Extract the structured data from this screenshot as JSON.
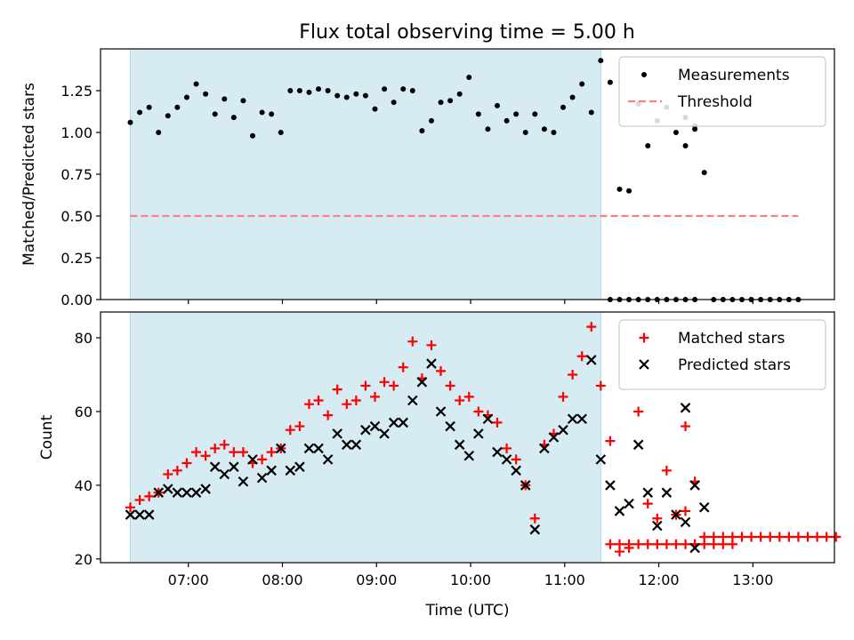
{
  "figure": {
    "title": "Flux total observing time = 5.00 h"
  },
  "chart_data": [
    {
      "type": "scatter",
      "ylabel": "Matched/Predicted stars",
      "ylim": [
        0,
        1.5
      ],
      "yticks": [
        0.0,
        0.25,
        0.5,
        0.75,
        1.0,
        1.25
      ],
      "ytick_labels": [
        "0.00",
        "0.25",
        "0.50",
        "0.75",
        "1.00",
        "1.25"
      ],
      "xlim": [
        "06:04",
        "13:52"
      ],
      "observing_window": [
        "06:23",
        "11:23"
      ],
      "legend_position": "upper right",
      "threshold": {
        "name": "Threshold",
        "value": 0.5,
        "x_range": [
          "06:23",
          "13:29"
        ],
        "color": "#ff7f7f",
        "style": "dashed"
      },
      "series": [
        {
          "name": "Measurements",
          "color": "#000000",
          "marker": "dot",
          "points": [
            [
              "06:23",
              1.06
            ],
            [
              "06:29",
              1.12
            ],
            [
              "06:35",
              1.15
            ],
            [
              "06:41",
              1.0
            ],
            [
              "06:47",
              1.1
            ],
            [
              "06:53",
              1.15
            ],
            [
              "06:59",
              1.21
            ],
            [
              "07:05",
              1.29
            ],
            [
              "07:11",
              1.23
            ],
            [
              "07:17",
              1.11
            ],
            [
              "07:23",
              1.2
            ],
            [
              "07:29",
              1.09
            ],
            [
              "07:35",
              1.19
            ],
            [
              "07:41",
              0.98
            ],
            [
              "07:47",
              1.12
            ],
            [
              "07:53",
              1.11
            ],
            [
              "07:59",
              1.0
            ],
            [
              "08:05",
              1.25
            ],
            [
              "08:11",
              1.25
            ],
            [
              "08:17",
              1.24
            ],
            [
              "08:23",
              1.26
            ],
            [
              "08:29",
              1.25
            ],
            [
              "08:35",
              1.22
            ],
            [
              "08:41",
              1.21
            ],
            [
              "08:47",
              1.23
            ],
            [
              "08:53",
              1.22
            ],
            [
              "08:59",
              1.14
            ],
            [
              "09:05",
              1.26
            ],
            [
              "09:11",
              1.18
            ],
            [
              "09:17",
              1.26
            ],
            [
              "09:23",
              1.25
            ],
            [
              "09:29",
              1.01
            ],
            [
              "09:35",
              1.07
            ],
            [
              "09:41",
              1.18
            ],
            [
              "09:47",
              1.19
            ],
            [
              "09:53",
              1.23
            ],
            [
              "09:59",
              1.33
            ],
            [
              "10:05",
              1.11
            ],
            [
              "10:11",
              1.02
            ],
            [
              "10:17",
              1.16
            ],
            [
              "10:23",
              1.07
            ],
            [
              "10:29",
              1.11
            ],
            [
              "10:35",
              1.0
            ],
            [
              "10:41",
              1.11
            ],
            [
              "10:47",
              1.02
            ],
            [
              "10:53",
              1.0
            ],
            [
              "10:59",
              1.15
            ],
            [
              "11:05",
              1.21
            ],
            [
              "11:11",
              1.29
            ],
            [
              "11:17",
              1.12
            ],
            [
              "11:23",
              1.43
            ],
            [
              "11:29",
              1.3
            ],
            [
              "11:35",
              0.66
            ],
            [
              "11:41",
              0.65
            ],
            [
              "11:47",
              1.17
            ],
            [
              "11:53",
              0.92
            ],
            [
              "11:59",
              1.07
            ],
            [
              "12:05",
              1.15
            ],
            [
              "12:11",
              1.0
            ],
            [
              "12:17",
              1.09
            ],
            [
              "12:23",
              1.04
            ],
            [
              "11:29",
              0.0
            ],
            [
              "11:35",
              0.0
            ],
            [
              "11:41",
              0.0
            ],
            [
              "11:47",
              0.0
            ],
            [
              "11:53",
              0.0
            ],
            [
              "11:59",
              0.0
            ],
            [
              "12:05",
              0.0
            ],
            [
              "12:11",
              0.0
            ],
            [
              "12:17",
              0.0
            ],
            [
              "12:23",
              0.0
            ],
            [
              "12:17",
              0.92
            ],
            [
              "12:23",
              1.02
            ],
            [
              "12:29",
              0.76
            ],
            [
              "12:35",
              0.0
            ],
            [
              "12:41",
              0.0
            ],
            [
              "12:47",
              0.0
            ],
            [
              "12:53",
              0.0
            ],
            [
              "12:59",
              0.0
            ],
            [
              "13:05",
              0.0
            ],
            [
              "13:11",
              0.0
            ],
            [
              "13:17",
              0.0
            ],
            [
              "13:23",
              0.0
            ],
            [
              "13:29",
              0.0
            ]
          ]
        }
      ]
    },
    {
      "type": "scatter",
      "ylabel": "Count",
      "xlabel": "Time (UTC)",
      "ylim": [
        19,
        87
      ],
      "yticks": [
        20,
        40,
        60,
        80
      ],
      "ytick_labels": [
        "20",
        "40",
        "60",
        "80"
      ],
      "xlim": [
        "06:04",
        "13:52"
      ],
      "xticks": [
        "07:00",
        "08:00",
        "09:00",
        "10:00",
        "11:00",
        "12:00",
        "13:00"
      ],
      "xtick_labels": [
        "07:00",
        "08:00",
        "09:00",
        "10:00",
        "11:00",
        "12:00",
        "13:00"
      ],
      "observing_window": [
        "06:23",
        "11:23"
      ],
      "legend_position": "upper right",
      "series": [
        {
          "name": "Matched stars",
          "color": "#ff0000",
          "marker": "plus",
          "points": [
            [
              "06:23",
              34
            ],
            [
              "06:29",
              36
            ],
            [
              "06:35",
              37
            ],
            [
              "06:41",
              38
            ],
            [
              "06:47",
              43
            ],
            [
              "06:53",
              44
            ],
            [
              "06:59",
              46
            ],
            [
              "07:05",
              49
            ],
            [
              "07:11",
              48
            ],
            [
              "07:17",
              50
            ],
            [
              "07:23",
              51
            ],
            [
              "07:29",
              49
            ],
            [
              "07:35",
              49
            ],
            [
              "07:41",
              46
            ],
            [
              "07:47",
              47
            ],
            [
              "07:53",
              49
            ],
            [
              "07:59",
              50
            ],
            [
              "08:05",
              55
            ],
            [
              "08:11",
              56
            ],
            [
              "08:17",
              62
            ],
            [
              "08:23",
              63
            ],
            [
              "08:29",
              59
            ],
            [
              "08:35",
              66
            ],
            [
              "08:41",
              62
            ],
            [
              "08:47",
              63
            ],
            [
              "08:53",
              67
            ],
            [
              "08:59",
              64
            ],
            [
              "09:05",
              68
            ],
            [
              "09:11",
              67
            ],
            [
              "09:17",
              72
            ],
            [
              "09:23",
              79
            ],
            [
              "09:29",
              69
            ],
            [
              "09:35",
              78
            ],
            [
              "09:41",
              71
            ],
            [
              "09:47",
              67
            ],
            [
              "09:53",
              63
            ],
            [
              "09:59",
              64
            ],
            [
              "10:05",
              60
            ],
            [
              "10:11",
              59
            ],
            [
              "10:17",
              57
            ],
            [
              "10:23",
              50
            ],
            [
              "10:29",
              47
            ],
            [
              "10:35",
              40
            ],
            [
              "10:41",
              31
            ],
            [
              "10:47",
              51
            ],
            [
              "10:53",
              54
            ],
            [
              "10:59",
              64
            ],
            [
              "11:05",
              70
            ],
            [
              "11:11",
              75
            ],
            [
              "11:17",
              83
            ],
            [
              "11:23",
              67
            ],
            [
              "11:29",
              52
            ],
            [
              "11:35",
              22
            ],
            [
              "11:41",
              23
            ],
            [
              "11:47",
              60
            ],
            [
              "11:53",
              35
            ],
            [
              "11:59",
              31
            ],
            [
              "12:05",
              44
            ],
            [
              "12:11",
              32
            ],
            [
              "12:17",
              33
            ],
            [
              "12:23",
              24
            ],
            [
              "11:29",
              24
            ],
            [
              "11:35",
              24
            ],
            [
              "11:41",
              24
            ],
            [
              "11:47",
              24
            ],
            [
              "11:53",
              24
            ],
            [
              "11:59",
              24
            ],
            [
              "12:05",
              24
            ],
            [
              "12:11",
              24
            ],
            [
              "12:17",
              24
            ],
            [
              "12:23",
              24
            ],
            [
              "12:29",
              24
            ],
            [
              "12:35",
              24
            ],
            [
              "12:41",
              24
            ],
            [
              "12:47",
              24
            ],
            [
              "12:17",
              56
            ],
            [
              "12:23",
              41
            ],
            [
              "12:29",
              26
            ],
            [
              "12:35",
              26
            ],
            [
              "12:41",
              26
            ],
            [
              "12:47",
              26
            ],
            [
              "12:53",
              26
            ],
            [
              "12:59",
              26
            ],
            [
              "13:05",
              26
            ],
            [
              "13:11",
              26
            ],
            [
              "13:17",
              26
            ],
            [
              "13:23",
              26
            ],
            [
              "13:29",
              26
            ],
            [
              "13:35",
              26
            ],
            [
              "13:41",
              26
            ],
            [
              "13:47",
              26
            ],
            [
              "13:53",
              26
            ]
          ]
        },
        {
          "name": "Predicted stars",
          "color": "#000000",
          "marker": "x",
          "points": [
            [
              "06:23",
              32
            ],
            [
              "06:29",
              32
            ],
            [
              "06:35",
              32
            ],
            [
              "06:41",
              38
            ],
            [
              "06:47",
              39
            ],
            [
              "06:53",
              38
            ],
            [
              "06:59",
              38
            ],
            [
              "07:05",
              38
            ],
            [
              "07:11",
              39
            ],
            [
              "07:17",
              45
            ],
            [
              "07:23",
              43
            ],
            [
              "07:29",
              45
            ],
            [
              "07:35",
              41
            ],
            [
              "07:41",
              47
            ],
            [
              "07:47",
              42
            ],
            [
              "07:53",
              44
            ],
            [
              "07:59",
              50
            ],
            [
              "08:05",
              44
            ],
            [
              "08:11",
              45
            ],
            [
              "08:17",
              50
            ],
            [
              "08:23",
              50
            ],
            [
              "08:29",
              47
            ],
            [
              "08:35",
              54
            ],
            [
              "08:41",
              51
            ],
            [
              "08:47",
              51
            ],
            [
              "08:53",
              55
            ],
            [
              "08:59",
              56
            ],
            [
              "09:05",
              54
            ],
            [
              "09:11",
              57
            ],
            [
              "09:17",
              57
            ],
            [
              "09:23",
              63
            ],
            [
              "09:29",
              68
            ],
            [
              "09:35",
              73
            ],
            [
              "09:41",
              60
            ],
            [
              "09:47",
              56
            ],
            [
              "09:53",
              51
            ],
            [
              "09:59",
              48
            ],
            [
              "10:05",
              54
            ],
            [
              "10:11",
              58
            ],
            [
              "10:17",
              49
            ],
            [
              "10:23",
              47
            ],
            [
              "10:29",
              44
            ],
            [
              "10:35",
              40
            ],
            [
              "10:41",
              28
            ],
            [
              "10:47",
              50
            ],
            [
              "10:53",
              53
            ],
            [
              "10:59",
              55
            ],
            [
              "11:05",
              58
            ],
            [
              "11:11",
              58
            ],
            [
              "11:17",
              74
            ],
            [
              "11:23",
              47
            ],
            [
              "11:29",
              40
            ],
            [
              "11:35",
              33
            ],
            [
              "11:41",
              35
            ],
            [
              "11:47",
              51
            ],
            [
              "11:53",
              38
            ],
            [
              "11:59",
              29
            ],
            [
              "12:05",
              38
            ],
            [
              "12:11",
              32
            ],
            [
              "12:17",
              30
            ],
            [
              "12:23",
              23
            ],
            [
              "12:17",
              61
            ],
            [
              "12:23",
              40
            ],
            [
              "12:29",
              34
            ]
          ]
        }
      ]
    }
  ]
}
